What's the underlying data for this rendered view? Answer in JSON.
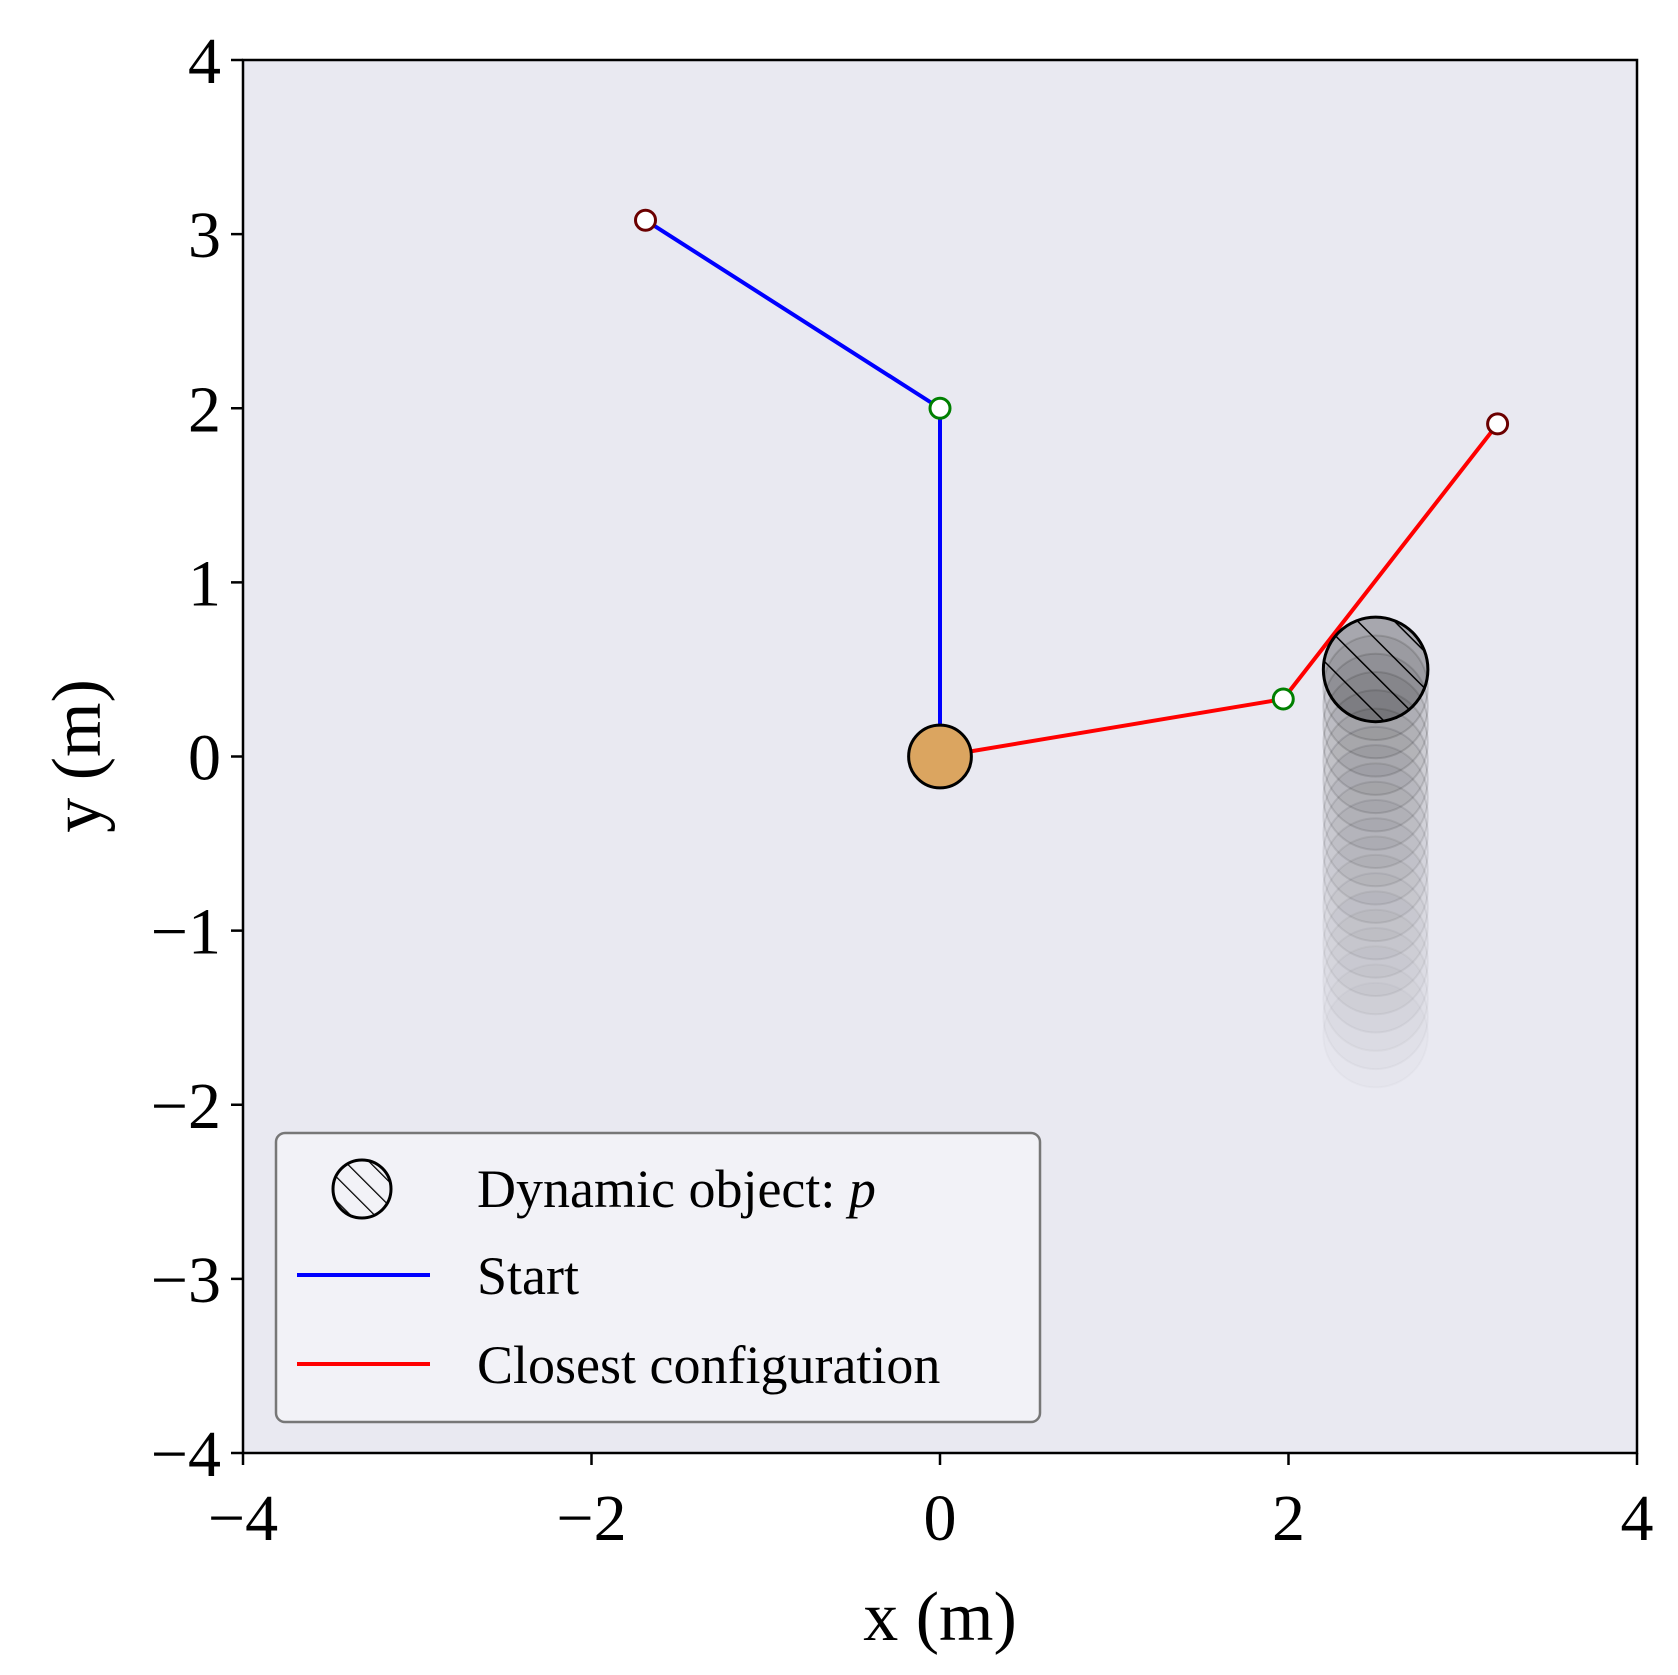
{
  "chart_data": {
    "type": "line",
    "title": "",
    "xlabel": "x (m)",
    "ylabel": "y (m)",
    "xlim": [
      -4,
      4
    ],
    "ylim": [
      -4,
      4
    ],
    "xticks": [
      -4,
      -2,
      0,
      2,
      4
    ],
    "yticks": [
      -4,
      -3,
      -2,
      -1,
      0,
      1,
      2,
      3,
      4
    ],
    "tick_labels_x": [
      "−4",
      "−2",
      "0",
      "2",
      "4"
    ],
    "tick_labels_y": [
      "−4",
      "−3",
      "−2",
      "−1",
      "0",
      "1",
      "2",
      "3",
      "4"
    ],
    "grid": false,
    "axes_facecolor": "#e9e9f1",
    "series": [
      {
        "name": "Start",
        "color": "#0000ff",
        "x": [
          0,
          0,
          -1.69
        ],
        "y": [
          0,
          2,
          3.08
        ]
      },
      {
        "name": "Closest configuration",
        "color": "#ff0000",
        "x": [
          0,
          1.97,
          3.2
        ],
        "y": [
          0,
          0.33,
          1.91
        ]
      }
    ],
    "base": {
      "x": 0,
      "y": 0,
      "radius": 0.18,
      "color": "#dba560"
    },
    "joint_color": "#008000",
    "end_effector_color": "#6b0000",
    "dynamic_object": {
      "name_prefix": "Dynamic object: ",
      "name_symbol": "p",
      "x": 2.5,
      "y_current": 0.5,
      "radius": 0.3,
      "trail_y_start": -1.6,
      "trail_y_end": 0.5,
      "trail_count": 21,
      "color": "#000000"
    },
    "legend": {
      "position": "lower-left",
      "entries": [
        "Dynamic object: p",
        "Start",
        "Closest configuration"
      ]
    }
  }
}
